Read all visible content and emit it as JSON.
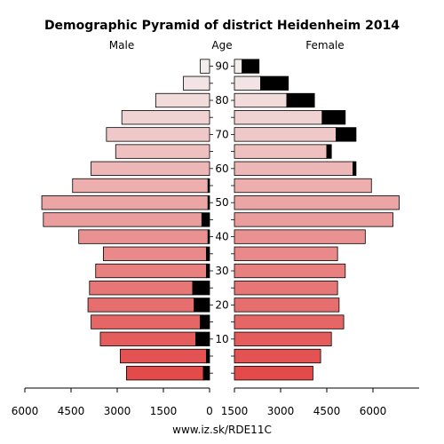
{
  "chart_data": {
    "type": "bar",
    "title": "Demographic Pyramid of district Heidenheim 2014",
    "left_label": "Male",
    "center_label": "Age",
    "right_label": "Female",
    "footer": "www.iz.sk/RDE11C",
    "age_ticks": [
      "10",
      "20",
      "30",
      "40",
      "50",
      "60",
      "70",
      "80",
      "90"
    ],
    "x_ticks": [
      "6000",
      "4500",
      "3000",
      "1500",
      "0",
      "1500",
      "3000",
      "4500",
      "6000"
    ],
    "xlim": [
      0,
      6000
    ],
    "age_groups": [
      "0-4",
      "5-9",
      "10-14",
      "15-19",
      "20-24",
      "25-29",
      "30-34",
      "35-39",
      "40-44",
      "45-49",
      "50-54",
      "55-59",
      "60-64",
      "65-69",
      "70-74",
      "75-79",
      "80-84",
      "85-89",
      "90+"
    ],
    "male_total": [
      2700,
      2900,
      3550,
      3850,
      3950,
      3900,
      3700,
      3450,
      4250,
      5400,
      5450,
      4450,
      3850,
      3050,
      3350,
      2850,
      1750,
      850,
      300
    ],
    "male_black": [
      200,
      100,
      450,
      300,
      500,
      550,
      100,
      100,
      50,
      250,
      50,
      50,
      0,
      0,
      0,
      0,
      0,
      0,
      0
    ],
    "female_total": [
      2550,
      2800,
      3150,
      3550,
      3400,
      3350,
      3600,
      3350,
      4250,
      5150,
      5350,
      4450,
      3950,
      3150,
      3950,
      3600,
      2600,
      1750,
      800
    ],
    "female_black": [
      0,
      0,
      0,
      0,
      0,
      0,
      0,
      0,
      0,
      0,
      0,
      0,
      100,
      150,
      650,
      750,
      900,
      900,
      550
    ],
    "colors": {
      "young": "#e34a4a",
      "old": "#f3eded",
      "foreign": "#000000",
      "stroke": "#000000"
    }
  }
}
